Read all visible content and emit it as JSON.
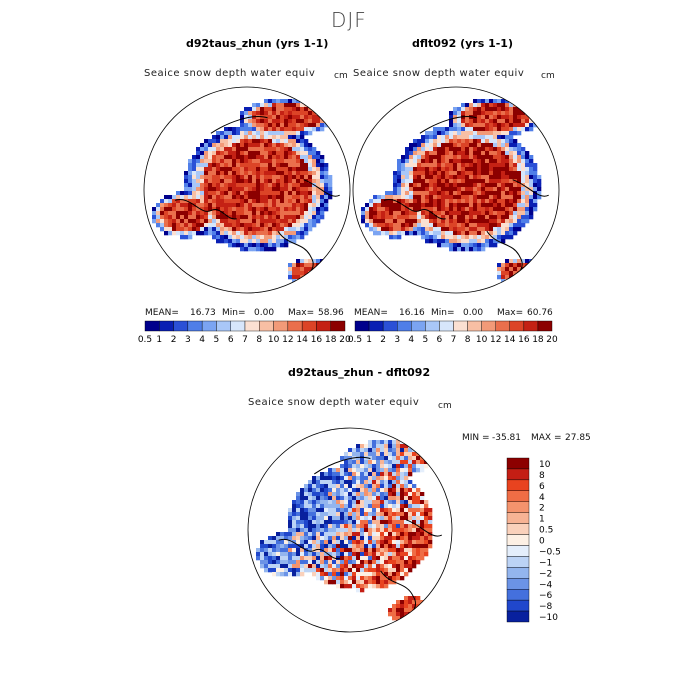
{
  "season": "DJF",
  "colors": {
    "snow_scale": [
      "#00008c",
      "#0a1fb3",
      "#2b50d6",
      "#4f7ee8",
      "#7ba4f2",
      "#a9c7f8",
      "#d7e6fb",
      "#fbe0d2",
      "#f8bfa4",
      "#f29a78",
      "#ea6f4c",
      "#dc4427",
      "#c42114",
      "#8c0000"
    ],
    "diff_scale": [
      "#8c0000",
      "#c41e14",
      "#e8431f",
      "#ef6d45",
      "#f4936d",
      "#f7b394",
      "#fad1bb",
      "#fdf0e4",
      "#e4eefb",
      "#bcd3f5",
      "#93b5ee",
      "#6b93e6",
      "#4470dd",
      "#2047cc",
      "#08209e"
    ],
    "land": "#ffffff",
    "outline": "#000000"
  },
  "chart_data": [
    {
      "type": "heatmap",
      "projection": "north-polar-stereographic",
      "title": "d92taus_zhun (yrs 1-1)",
      "variable": "Seaice snow depth water equiv",
      "units": "cm",
      "stats": {
        "mean": "16.73",
        "min": "0.00",
        "max": "58.96"
      },
      "stats_labels": {
        "mean": "MEAN=",
        "min": "Min=",
        "max": "Max="
      },
      "colorbar_levels": [
        "0.5",
        "1",
        "2",
        "3",
        "4",
        "5",
        "6",
        "7",
        "8",
        "10",
        "12",
        "14",
        "16",
        "18",
        "20"
      ]
    },
    {
      "type": "heatmap",
      "projection": "north-polar-stereographic",
      "title": "dflt092 (yrs 1-1)",
      "variable": "Seaice snow depth water equiv",
      "units": "cm",
      "stats": {
        "mean": "16.16",
        "min": "0.00",
        "max": "60.76"
      },
      "stats_labels": {
        "mean": "MEAN=",
        "min": "Min=",
        "max": "Max="
      },
      "colorbar_levels": [
        "0.5",
        "1",
        "2",
        "3",
        "4",
        "5",
        "6",
        "7",
        "8",
        "10",
        "12",
        "14",
        "16",
        "18",
        "20"
      ]
    },
    {
      "type": "heatmap",
      "projection": "north-polar-stereographic",
      "title": "d92taus_zhun - dflt092",
      "variable": "Seaice snow depth water equiv",
      "units": "cm",
      "stats": {
        "min": "-35.81",
        "max": "27.85"
      },
      "stats_labels": {
        "min": "MIN =",
        "max": "MAX ="
      },
      "colorbar_levels": [
        "10",
        "8",
        "6",
        "4",
        "2",
        "1",
        "0.5",
        "0",
        "−0.5",
        "−1",
        "−2",
        "−4",
        "−6",
        "−8",
        "−10"
      ]
    }
  ]
}
